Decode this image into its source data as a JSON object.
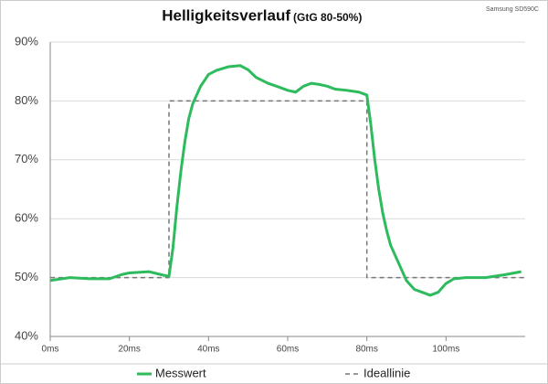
{
  "chart_data": {
    "type": "line",
    "title": "Helligkeitsverlauf",
    "subtitle": "(GtG 80-50%)",
    "annotation": "Samsung SD590C",
    "xlim": [
      0,
      120
    ],
    "ylim": [
      40,
      90
    ],
    "grid": true,
    "xticks": [
      {
        "value": 0,
        "label": "0ms"
      },
      {
        "value": 20,
        "label": "20ms"
      },
      {
        "value": 40,
        "label": "40ms"
      },
      {
        "value": 60,
        "label": "60ms"
      },
      {
        "value": 80,
        "label": "80ms"
      },
      {
        "value": 100,
        "label": "100ms"
      }
    ],
    "yticks": [
      {
        "value": 40,
        "label": "40%"
      },
      {
        "value": 50,
        "label": "50%"
      },
      {
        "value": 60,
        "label": "60%"
      },
      {
        "value": 70,
        "label": "70%"
      },
      {
        "value": 80,
        "label": "80%"
      },
      {
        "value": 90,
        "label": "90%"
      }
    ],
    "series": [
      {
        "name": "Messwert",
        "color": "#2dbb5d",
        "dash": false,
        "x": [
          0,
          5,
          10,
          15,
          18,
          20,
          25,
          28,
          30,
          31,
          32,
          33,
          34,
          35,
          36,
          38,
          40,
          42,
          45,
          48,
          50,
          52,
          55,
          58,
          60,
          62,
          64,
          66,
          68,
          70,
          72,
          75,
          78,
          80,
          81,
          82,
          83,
          84,
          85,
          86,
          88,
          90,
          92,
          94,
          96,
          98,
          100,
          102,
          105,
          110,
          115,
          119
        ],
        "values": [
          49.5,
          50,
          49.8,
          49.8,
          50.5,
          50.8,
          51,
          50.5,
          50.2,
          55,
          62,
          68,
          73,
          77,
          79.5,
          82.5,
          84.5,
          85.2,
          85.8,
          86,
          85.3,
          84,
          83,
          82.3,
          81.8,
          81.5,
          82.5,
          83,
          82.8,
          82.5,
          82,
          81.8,
          81.5,
          81,
          76,
          70,
          65,
          61,
          58,
          55.5,
          52.5,
          49.5,
          48,
          47.5,
          47,
          47.5,
          49,
          49.8,
          50,
          50,
          50.5,
          51
        ]
      },
      {
        "name": "Ideallinie",
        "color": "#777777",
        "dash": true,
        "x": [
          0,
          30,
          30,
          80,
          80,
          120
        ],
        "values": [
          50,
          50,
          80,
          80,
          50,
          50
        ]
      }
    ]
  }
}
